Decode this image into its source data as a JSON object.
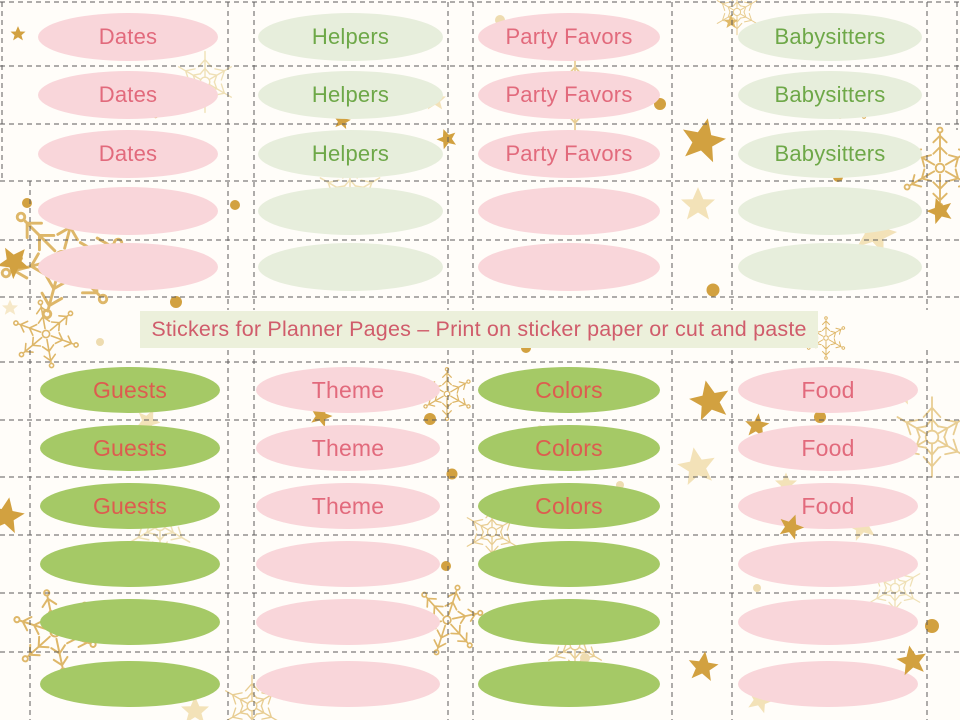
{
  "banner": {
    "text": "Stickers for Planner Pages – Print on sticker paper or cut and paste",
    "bg_color": "#ecf0db",
    "text_color": "#d05c6b"
  },
  "palette": {
    "page_background": "#fffdf9",
    "pink_oval": "#f9d6da",
    "light_green_oval": "#e7eedc",
    "green_oval": "#a5c966",
    "rose_text": "#e26a7c",
    "green_text": "#6ea848",
    "red_text": "#dd5c4f",
    "cut_line": "#5c5c5c",
    "gold": "#d2a140",
    "gold_light": "#e6c685",
    "gold_pale": "#f3e2b8"
  },
  "sections": [
    {
      "name": "top",
      "total_rows": 5,
      "labeled_rows": 3,
      "columns": [
        {
          "label": "Dates",
          "oval_fill": "#f9d6da",
          "label_color": "#e26a7c"
        },
        {
          "label": "Helpers",
          "oval_fill": "#e7eedc",
          "label_color": "#6ea848"
        },
        {
          "label": "Party Favors",
          "oval_fill": "#f9d6da",
          "label_color": "#e26a7c"
        },
        {
          "label": "Babysitters",
          "oval_fill": "#e7eedc",
          "label_color": "#6ea848"
        }
      ]
    },
    {
      "name": "bottom",
      "total_rows": 6,
      "labeled_rows": 3,
      "columns": [
        {
          "label": "Guests",
          "oval_fill": "#a5c966",
          "label_color": "#dd5c4f"
        },
        {
          "label": "Theme",
          "oval_fill": "#f9d6da",
          "label_color": "#e26a7c"
        },
        {
          "label": "Colors",
          "oval_fill": "#a5c966",
          "label_color": "#dd5c4f"
        },
        {
          "label": "Food",
          "oval_fill": "#f9d6da",
          "label_color": "#e26a7c"
        }
      ]
    }
  ],
  "decor_icons": [
    "gold-snowflake-icon",
    "thin-snowflake-icon",
    "gold-star-icon",
    "pale-star-icon",
    "gold-dot-icon"
  ]
}
